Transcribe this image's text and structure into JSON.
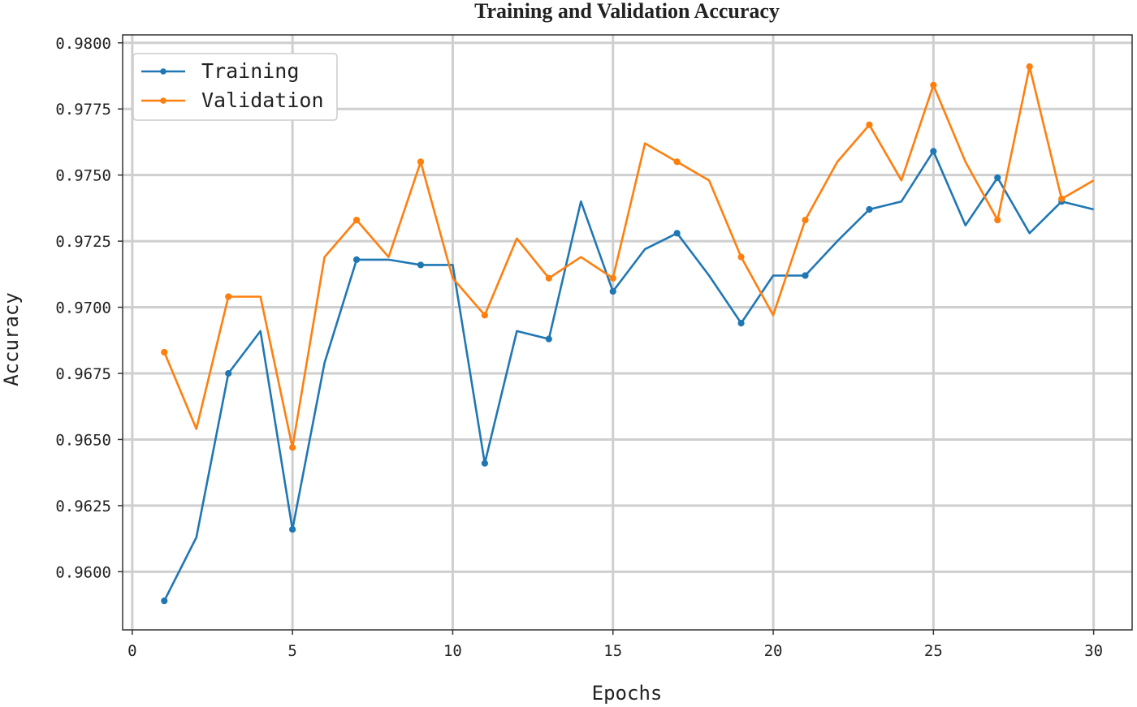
{
  "chart_data": {
    "type": "line",
    "title": "Training and Validation Accuracy",
    "xlabel": "Epochs",
    "ylabel": "Accuracy",
    "xlim": [
      -0.3,
      31.2
    ],
    "ylim": [
      0.9578,
      0.9803
    ],
    "xticks": [
      0,
      5,
      10,
      15,
      20,
      25,
      30
    ],
    "yticks": [
      0.96,
      0.9625,
      0.965,
      0.9675,
      0.97,
      0.9725,
      0.975,
      0.9775,
      0.98
    ],
    "ytick_labels": [
      "0.9600",
      "0.9625",
      "0.9650",
      "0.9675",
      "0.9700",
      "0.9725",
      "0.9750",
      "0.9775",
      "0.9800"
    ],
    "grid": true,
    "legend_position": "top-left",
    "x": [
      1,
      2,
      3,
      4,
      5,
      6,
      7,
      8,
      9,
      10,
      11,
      12,
      13,
      14,
      15,
      16,
      17,
      18,
      19,
      20,
      21,
      22,
      23,
      24,
      25,
      26,
      27,
      28,
      29,
      30
    ],
    "series": [
      {
        "name": "Training",
        "color": "#1f77b4",
        "values": [
          0.9589,
          0.9613,
          0.9675,
          0.9691,
          0.9616,
          0.9679,
          0.9718,
          0.9718,
          0.9716,
          0.9716,
          0.9641,
          0.9691,
          0.9688,
          0.974,
          0.9706,
          0.9722,
          0.9728,
          0.9712,
          0.9694,
          0.9712,
          0.9712,
          0.9725,
          0.9737,
          0.974,
          0.9759,
          0.9731,
          0.9749,
          0.9728,
          0.974,
          0.9737
        ],
        "markers": [
          true,
          false,
          true,
          false,
          true,
          false,
          true,
          false,
          true,
          false,
          true,
          false,
          true,
          false,
          true,
          false,
          true,
          false,
          true,
          false,
          true,
          false,
          true,
          false,
          true,
          false,
          true,
          false,
          true,
          false
        ]
      },
      {
        "name": "Validation",
        "color": "#ff7f0e",
        "values": [
          0.9683,
          0.9654,
          0.9704,
          0.9704,
          0.9647,
          0.9719,
          0.9733,
          0.9719,
          0.9755,
          0.9711,
          0.9697,
          0.9726,
          0.9711,
          0.9719,
          0.9711,
          0.9762,
          0.9755,
          0.9748,
          0.9719,
          0.9697,
          0.9733,
          0.9755,
          0.9769,
          0.9748,
          0.9784,
          0.9755,
          0.9733,
          0.9791,
          0.9741,
          0.9748
        ],
        "markers": [
          true,
          false,
          true,
          false,
          true,
          false,
          true,
          false,
          true,
          false,
          true,
          false,
          true,
          false,
          true,
          false,
          true,
          false,
          true,
          false,
          true,
          false,
          true,
          false,
          true,
          false,
          true,
          true,
          true,
          false
        ]
      }
    ]
  }
}
